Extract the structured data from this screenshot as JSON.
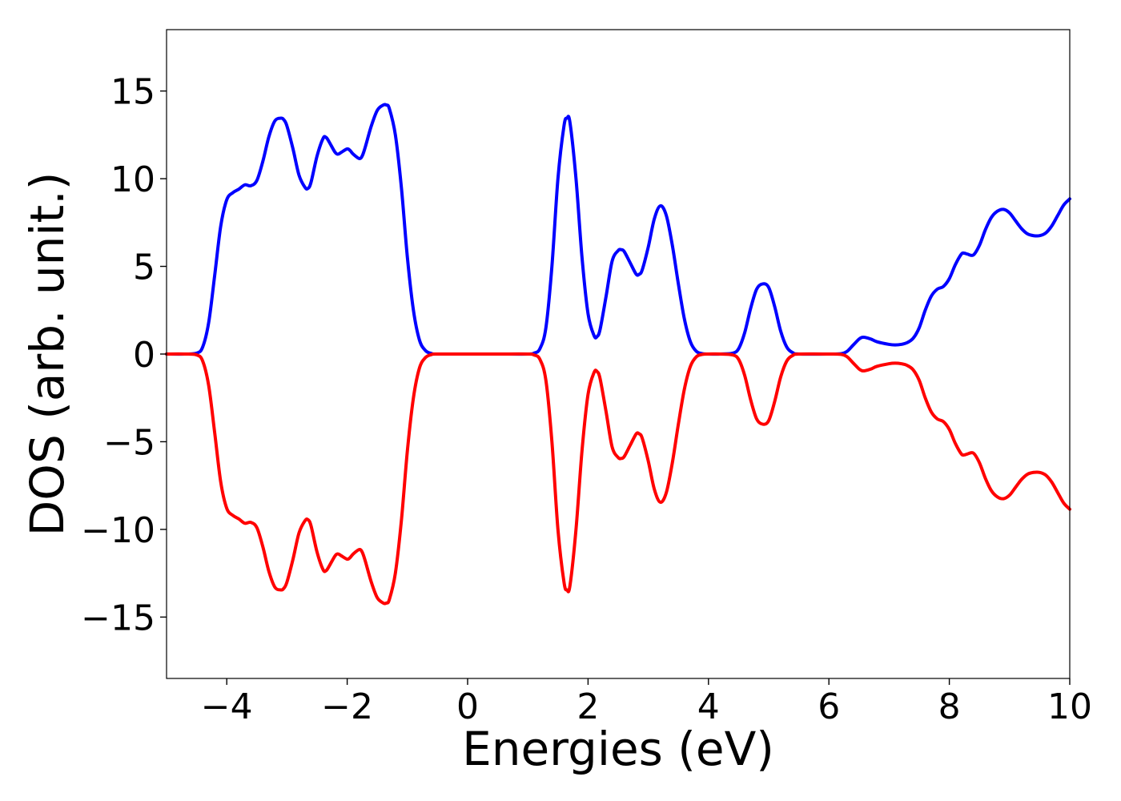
{
  "chart_data": {
    "type": "line",
    "title": "",
    "xlabel": "Energies (eV)",
    "ylabel": "DOS (arb. unit.)",
    "xlim": [
      -5,
      10
    ],
    "ylim": [
      -18.5,
      18.5
    ],
    "xticks": [
      -4,
      -2,
      0,
      2,
      4,
      6,
      8,
      10
    ],
    "xtick_labels": [
      "−4",
      "−2",
      "0",
      "2",
      "4",
      "6",
      "8",
      "10"
    ],
    "yticks": [
      -15,
      -10,
      -5,
      0,
      5,
      10,
      15
    ],
    "ytick_labels": [
      "−15",
      "−10",
      "−5",
      "0",
      "5",
      "10",
      "15"
    ],
    "grid": false,
    "legend": "none",
    "series": [
      {
        "color": "#0000ff",
        "x": [
          -5,
          -4.7,
          -4.5,
          -4.4,
          -4.3,
          -4.2,
          -4.1,
          -4.0,
          -3.9,
          -3.8,
          -3.7,
          -3.6,
          -3.5,
          -3.4,
          -3.3,
          -3.2,
          -3.1,
          -3.05,
          -3.0,
          -2.9,
          -2.8,
          -2.7,
          -2.65,
          -2.6,
          -2.5,
          -2.4,
          -2.35,
          -2.3,
          -2.2,
          -2.15,
          -2.1,
          -2.0,
          -1.95,
          -1.9,
          -1.8,
          -1.75,
          -1.7,
          -1.6,
          -1.5,
          -1.4,
          -1.35,
          -1.3,
          -1.2,
          -1.1,
          -1.0,
          -0.9,
          -0.8,
          -0.7,
          -0.6,
          -0.5,
          0,
          0.5,
          1.0,
          1.1,
          1.2,
          1.3,
          1.4,
          1.5,
          1.6,
          1.65,
          1.7,
          1.8,
          1.9,
          2.0,
          2.1,
          2.15,
          2.2,
          2.3,
          2.4,
          2.5,
          2.55,
          2.6,
          2.7,
          2.8,
          2.85,
          2.9,
          3.0,
          3.1,
          3.2,
          3.3,
          3.4,
          3.5,
          3.6,
          3.7,
          3.8,
          3.9,
          4.0,
          4.2,
          4.4,
          4.5,
          4.6,
          4.7,
          4.8,
          4.9,
          5.0,
          5.1,
          5.2,
          5.3,
          5.4,
          5.5,
          6.0,
          6.2,
          6.3,
          6.4,
          6.5,
          6.55,
          6.6,
          6.7,
          6.8,
          7.0,
          7.1,
          7.2,
          7.3,
          7.4,
          7.5,
          7.6,
          7.7,
          7.8,
          7.9,
          8.0,
          8.1,
          8.2,
          8.25,
          8.3,
          8.4,
          8.5,
          8.6,
          8.7,
          8.8,
          8.9,
          9.0,
          9.1,
          9.2,
          9.3,
          9.4,
          9.5,
          9.6,
          9.7,
          9.8,
          9.9,
          10.0
        ],
        "y": [
          0,
          0,
          0.05,
          0.4,
          1.8,
          4.5,
          7.3,
          8.8,
          9.2,
          9.4,
          9.65,
          9.6,
          9.9,
          11.0,
          12.4,
          13.3,
          13.45,
          13.35,
          13.0,
          11.7,
          10.2,
          9.5,
          9.45,
          9.8,
          11.3,
          12.3,
          12.35,
          12.1,
          11.5,
          11.4,
          11.5,
          11.7,
          11.6,
          11.4,
          11.15,
          11.3,
          11.8,
          13.0,
          13.9,
          14.2,
          14.2,
          14.0,
          12.5,
          9.5,
          5.5,
          2.5,
          0.8,
          0.2,
          0.03,
          0,
          0,
          0,
          0,
          0.05,
          0.3,
          1.5,
          5.0,
          10.0,
          13.0,
          13.45,
          13.2,
          10.0,
          5.5,
          2.3,
          1.05,
          1.0,
          1.4,
          3.3,
          5.3,
          5.9,
          5.95,
          5.85,
          5.2,
          4.55,
          4.55,
          4.8,
          6.1,
          7.7,
          8.45,
          7.9,
          6.2,
          4.0,
          2.0,
          0.7,
          0.15,
          0.02,
          0,
          0,
          0.05,
          0.3,
          1.2,
          2.6,
          3.7,
          4.0,
          3.8,
          2.7,
          1.3,
          0.4,
          0.08,
          0,
          0,
          0.02,
          0.15,
          0.5,
          0.85,
          0.95,
          0.95,
          0.85,
          0.7,
          0.55,
          0.52,
          0.55,
          0.65,
          0.9,
          1.5,
          2.5,
          3.3,
          3.7,
          3.85,
          4.3,
          5.1,
          5.7,
          5.75,
          5.7,
          5.65,
          6.2,
          7.1,
          7.8,
          8.15,
          8.25,
          8.05,
          7.6,
          7.15,
          6.85,
          6.75,
          6.75,
          6.9,
          7.3,
          7.9,
          8.5,
          8.85
        ]
      },
      {
        "color": "#ff0000",
        "x": [
          -5,
          -4.7,
          -4.5,
          -4.4,
          -4.3,
          -4.2,
          -4.1,
          -4.0,
          -3.9,
          -3.8,
          -3.7,
          -3.6,
          -3.5,
          -3.4,
          -3.3,
          -3.2,
          -3.1,
          -3.05,
          -3.0,
          -2.9,
          -2.8,
          -2.7,
          -2.65,
          -2.6,
          -2.5,
          -2.4,
          -2.35,
          -2.3,
          -2.2,
          -2.15,
          -2.1,
          -2.0,
          -1.95,
          -1.9,
          -1.8,
          -1.75,
          -1.7,
          -1.6,
          -1.5,
          -1.4,
          -1.35,
          -1.3,
          -1.2,
          -1.1,
          -1.0,
          -0.9,
          -0.8,
          -0.7,
          -0.6,
          -0.5,
          0,
          0.5,
          1.0,
          1.1,
          1.2,
          1.3,
          1.4,
          1.5,
          1.6,
          1.65,
          1.7,
          1.8,
          1.9,
          2.0,
          2.1,
          2.15,
          2.2,
          2.3,
          2.4,
          2.5,
          2.55,
          2.6,
          2.7,
          2.8,
          2.85,
          2.9,
          3.0,
          3.1,
          3.2,
          3.3,
          3.4,
          3.5,
          3.6,
          3.7,
          3.8,
          3.9,
          4.0,
          4.2,
          4.4,
          4.5,
          4.6,
          4.7,
          4.8,
          4.9,
          5.0,
          5.1,
          5.2,
          5.3,
          5.4,
          5.5,
          6.0,
          6.2,
          6.3,
          6.4,
          6.5,
          6.55,
          6.6,
          6.7,
          6.8,
          7.0,
          7.1,
          7.2,
          7.3,
          7.4,
          7.5,
          7.6,
          7.7,
          7.8,
          7.9,
          8.0,
          8.1,
          8.2,
          8.25,
          8.3,
          8.4,
          8.5,
          8.6,
          8.7,
          8.8,
          8.9,
          9.0,
          9.1,
          9.2,
          9.3,
          9.4,
          9.5,
          9.6,
          9.7,
          9.8,
          9.9,
          10.0
        ],
        "y": [
          0,
          0,
          -0.05,
          -0.4,
          -1.8,
          -4.5,
          -7.3,
          -8.8,
          -9.2,
          -9.4,
          -9.65,
          -9.6,
          -9.9,
          -11.0,
          -12.4,
          -13.3,
          -13.45,
          -13.35,
          -13.0,
          -11.7,
          -10.2,
          -9.5,
          -9.45,
          -9.8,
          -11.3,
          -12.3,
          -12.35,
          -12.1,
          -11.5,
          -11.4,
          -11.5,
          -11.7,
          -11.6,
          -11.4,
          -11.15,
          -11.3,
          -11.8,
          -13.0,
          -13.9,
          -14.2,
          -14.2,
          -14.0,
          -12.5,
          -9.5,
          -5.5,
          -2.5,
          -0.8,
          -0.2,
          -0.03,
          0,
          0,
          0,
          0,
          -0.05,
          -0.3,
          -1.5,
          -5.0,
          -10.0,
          -13.0,
          -13.45,
          -13.2,
          -10.0,
          -5.5,
          -2.3,
          -1.05,
          -1.0,
          -1.4,
          -3.3,
          -5.3,
          -5.9,
          -5.95,
          -5.85,
          -5.2,
          -4.55,
          -4.55,
          -4.8,
          -6.1,
          -7.7,
          -8.45,
          -7.9,
          -6.2,
          -4.0,
          -2.0,
          -0.7,
          -0.15,
          -0.02,
          0,
          0,
          -0.05,
          -0.3,
          -1.2,
          -2.6,
          -3.7,
          -4.0,
          -3.8,
          -2.7,
          -1.3,
          -0.4,
          -0.08,
          0,
          0,
          -0.02,
          -0.15,
          -0.5,
          -0.85,
          -0.95,
          -0.95,
          -0.85,
          -0.7,
          -0.55,
          -0.52,
          -0.55,
          -0.65,
          -0.9,
          -1.5,
          -2.5,
          -3.3,
          -3.7,
          -3.85,
          -4.3,
          -5.1,
          -5.7,
          -5.75,
          -5.7,
          -5.65,
          -6.2,
          -7.1,
          -7.8,
          -8.15,
          -8.25,
          -8.05,
          -7.6,
          -7.15,
          -6.85,
          -6.75,
          -6.75,
          -6.9,
          -7.3,
          -7.9,
          -8.5,
          -8.85
        ]
      }
    ]
  }
}
